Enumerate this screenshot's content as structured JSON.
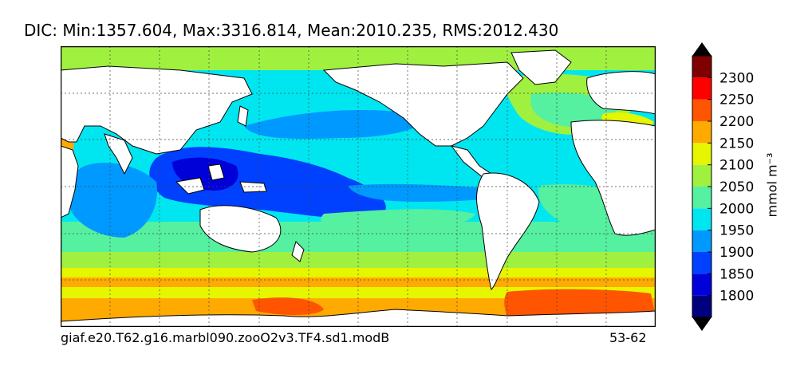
{
  "header": {
    "title": "DIC: Min:1357.604, Max:3316.814, Mean:2010.235, RMS:2012.430"
  },
  "footer": {
    "experiment": "giaf.e20.T62.g16.marbl090.zooO2v3.TF4.sd1.modB",
    "years": "53-62"
  },
  "colorbar": {
    "label": "mmol m⁻³",
    "ticks": [
      "1800",
      "1850",
      "1900",
      "1950",
      "2000",
      "2050",
      "2100",
      "2150",
      "2200",
      "2250",
      "2300"
    ],
    "colors": [
      "#00007f",
      "#0000d9",
      "#0040ff",
      "#0099ff",
      "#00e6f0",
      "#55f0a0",
      "#a0f040",
      "#e6f500",
      "#ffaa00",
      "#ff5500",
      "#ff0000",
      "#7f0000"
    ],
    "extend_low_color": "#000000",
    "extend_high_color": "#000000"
  },
  "map": {
    "projection": "global lat-lon, centered on Pacific",
    "gridlines": "dotted",
    "land_color": "#ffffff",
    "coastline_color": "#000000"
  }
}
